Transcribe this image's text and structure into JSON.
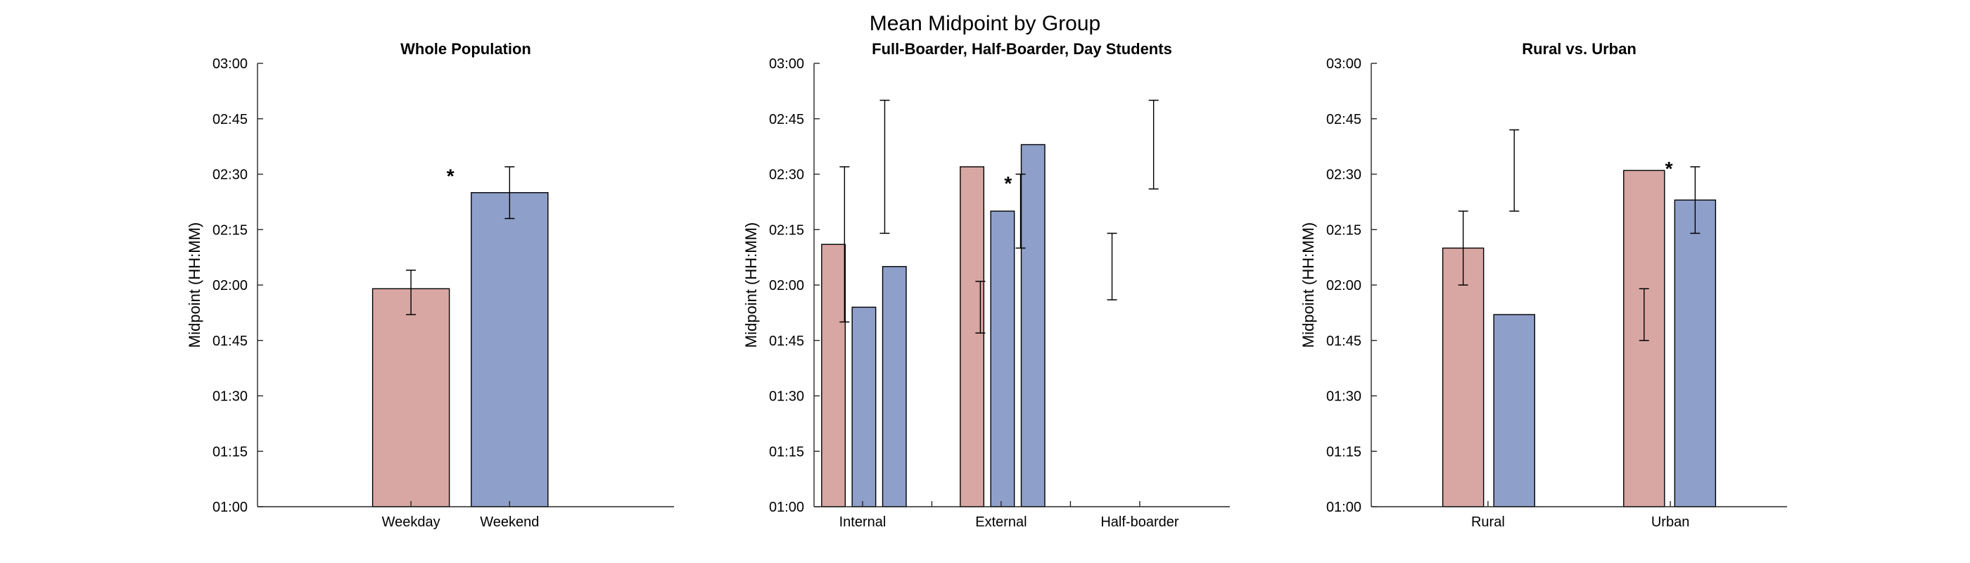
{
  "figure_title": "Mean Midpoint by Group",
  "colors": {
    "weekday": "#d8a7a3",
    "weekend": "#8e9fca",
    "axis": "#262626"
  },
  "chart_data": [
    {
      "type": "bar",
      "title": "Whole Population",
      "ylabel": "Midpoint (HH:MM)",
      "xlabel": "",
      "ylim": [
        "01:00",
        "03:00"
      ],
      "ylim_minutes": [
        60,
        180
      ],
      "yticks": [
        "01:00",
        "01:15",
        "01:30",
        "01:45",
        "02:00",
        "02:15",
        "02:30",
        "02:45",
        "03:00"
      ],
      "grid": false,
      "categories": [
        "Weekday",
        "Weekend"
      ],
      "bars": [
        {
          "category": "Weekday",
          "center": 0.7,
          "width": 0.35,
          "color": "weekday",
          "minutes": 119,
          "label": "01:59"
        },
        {
          "category": "Weekend",
          "center": 1.15,
          "width": 0.35,
          "color": "weekend",
          "minutes": 145,
          "label": "02:25"
        }
      ],
      "error_bars": [
        {
          "x": 0.7,
          "low": 112,
          "high": 124
        },
        {
          "x": 1.15,
          "low": 138,
          "high": 152
        }
      ],
      "annotations": [
        {
          "x": 0.88,
          "y": 150,
          "text": "*"
        }
      ],
      "xlim": [
        0,
        1.9
      ],
      "xticks": [
        {
          "x": 0.7,
          "label": "Weekday"
        },
        {
          "x": 1.15,
          "label": "Weekend"
        }
      ]
    },
    {
      "type": "bar",
      "title": "Full-Boarder, Half-Boarder, Day Students",
      "ylabel": "Midpoint (HH:MM)",
      "xlabel": "",
      "ylim": [
        "01:00",
        "03:00"
      ],
      "ylim_minutes": [
        60,
        180
      ],
      "yticks": [
        "01:00",
        "01:15",
        "01:30",
        "01:45",
        "02:00",
        "02:15",
        "02:30",
        "02:45",
        "03:00"
      ],
      "grid": false,
      "categories": [
        "Internal",
        "External",
        "Half-boarder"
      ],
      "bars": [
        {
          "category": "Internal",
          "center": 0.09,
          "width": 0.17,
          "color": "weekday",
          "minutes": 131,
          "label": "02:11"
        },
        {
          "category": "Internal",
          "center": 0.31,
          "width": 0.17,
          "color": "weekend",
          "minutes": 114,
          "label": "01:54"
        },
        {
          "category": "Internal",
          "center": 0.53,
          "width": 0.17,
          "color": "weekend",
          "minutes": 125,
          "label": "02:05"
        },
        {
          "category": "External",
          "center": 1.09,
          "width": 0.17,
          "color": "weekday",
          "minutes": 152,
          "label": "02:32"
        },
        {
          "category": "External",
          "center": 1.31,
          "width": 0.17,
          "color": "weekend",
          "minutes": 140,
          "label": "02:20"
        },
        {
          "category": "External",
          "center": 1.53,
          "width": 0.17,
          "color": "weekend",
          "minutes": 158,
          "label": "02:38"
        }
      ],
      "error_bars": [
        {
          "x": 0.17,
          "low": 110,
          "high": 152
        },
        {
          "x": 0.46,
          "low": 134,
          "high": 170
        },
        {
          "x": 1.15,
          "low": 107,
          "high": 121
        },
        {
          "x": 1.44,
          "low": 130,
          "high": 150
        },
        {
          "x": 2.1,
          "low": 116,
          "high": 134
        },
        {
          "x": 2.4,
          "low": 146,
          "high": 170
        }
      ],
      "annotations": [
        {
          "x": 1.35,
          "y": 148,
          "text": "*"
        }
      ],
      "xlim": [
        -0.05,
        2.95
      ],
      "xticks": [
        {
          "x": 0.3,
          "label": "Internal"
        },
        {
          "x": 1.3,
          "label": "External"
        },
        {
          "x": 2.3,
          "label": "Half-boarder"
        }
      ],
      "minor_xticks": [
        0.8,
        1.8
      ]
    },
    {
      "type": "bar",
      "title": "Rural vs. Urban",
      "ylabel": "Midpoint (HH:MM)",
      "xlabel": "",
      "ylim": [
        "01:00",
        "03:00"
      ],
      "ylim_minutes": [
        60,
        180
      ],
      "yticks": [
        "01:00",
        "01:15",
        "01:30",
        "01:45",
        "02:00",
        "02:15",
        "02:30",
        "02:45",
        "03:00"
      ],
      "grid": false,
      "categories": [
        "Rural",
        "Urban"
      ],
      "bars": [
        {
          "category": "Rural",
          "center": 0.63,
          "width": 0.28,
          "color": "weekday",
          "minutes": 130,
          "label": "02:10"
        },
        {
          "category": "Rural",
          "center": 0.98,
          "width": 0.28,
          "color": "weekend",
          "minutes": 112,
          "label": "01:52"
        },
        {
          "category": "Urban",
          "center": 1.87,
          "width": 0.28,
          "color": "weekday",
          "minutes": 151,
          "label": "02:31"
        },
        {
          "category": "Urban",
          "center": 2.22,
          "width": 0.28,
          "color": "weekend",
          "minutes": 143,
          "label": "02:23"
        }
      ],
      "error_bars": [
        {
          "x": 0.63,
          "low": 120,
          "high": 140
        },
        {
          "x": 0.98,
          "low": 140,
          "high": 162
        },
        {
          "x": 1.87,
          "low": 105,
          "high": 119
        },
        {
          "x": 2.22,
          "low": 134,
          "high": 152
        }
      ],
      "annotations": [
        {
          "x": 2.04,
          "y": 152,
          "text": "*"
        }
      ],
      "xlim": [
        0,
        2.85
      ],
      "xticks": [
        {
          "x": 0.8,
          "label": "Rural"
        },
        {
          "x": 2.05,
          "label": "Urban"
        }
      ]
    }
  ]
}
